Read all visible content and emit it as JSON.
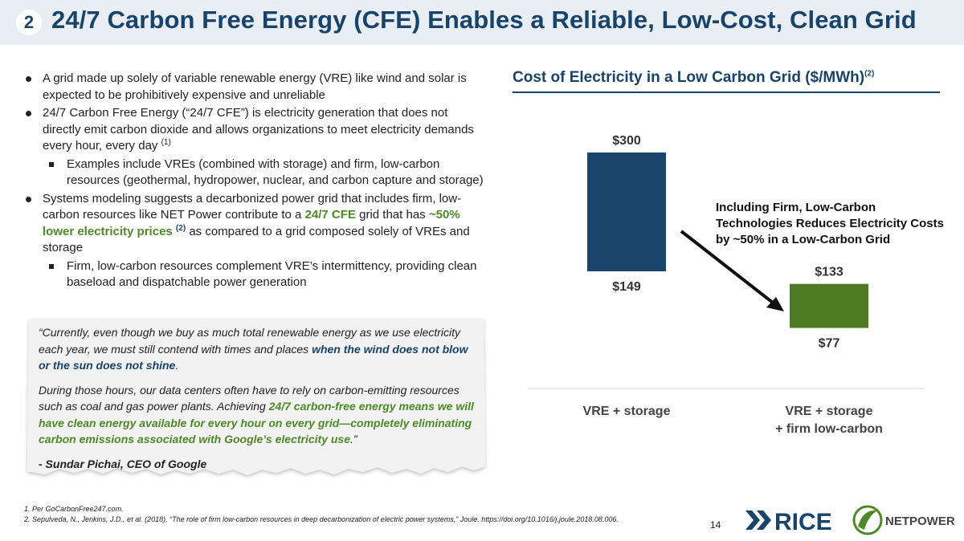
{
  "header": {
    "section_number": "2",
    "title": "24/7 Carbon Free Energy (CFE) Enables a Reliable, Low-Cost, Clean Grid"
  },
  "bullets": {
    "b1": "A grid made up solely of variable renewable energy (VRE) like wind and solar is expected to be prohibitively expensive and unreliable",
    "b2_text": "24/7 Carbon Free Energy (“24/7 CFE”) is electricity generation that does not directly emit carbon dioxide and allows organizations to meet electricity demands every hour, every day",
    "b2_ref": "(1)",
    "b2_sub": "Examples include VREs (combined with storage) and firm, low-carbon resources (geothermal, hydropower, nuclear, and carbon capture and storage)",
    "b3_pre": "Systems modeling suggests a decarbonized power grid that includes firm, low-carbon resources like NET Power contribute to a",
    "b3_cfe": "24/7 CFE",
    "b3_mid": "grid that has",
    "b3_lower": "~50% lower electricity prices",
    "b3_ref": "(2)",
    "b3_post": "as compared to a grid composed solely of VREs and storage",
    "b3_sub": "Firm, low-carbon resources complement VRE’s intermittency, providing clean baseload and dispatchable power generation"
  },
  "quote": {
    "p1_pre": "“Currently, even though we buy as much total renewable energy as we use electricity each year, we must still contend with times and places",
    "p1_bold": "when the wind does not blow or the sun does not shine",
    "p1_end": ".",
    "p2_pre": "During those hours, our data centers often have to rely on carbon-emitting resources such as coal and gas power plants. Achieving",
    "p2_bold": "24/7 carbon-free energy means we will have clean energy available for every hour on every grid—completely eliminating carbon emissions associated with Google’s electricity use",
    "p2_end": ".”",
    "attribution": "- Sundar Pichai, CEO of Google"
  },
  "footnotes": [
    "1.  Per GoCarbonFree247.com.",
    "2.  Sepulveda, N., Jenkins, J.D., et al. (2018), “The role of firm low-carbon resources in deep decarbonization of electric power systems,” Joule. https://doi.org/10.1016/j.joule.2018.08.006."
  ],
  "page_number": "14",
  "annotation": "Including Firm, Low-Carbon Technologies Reduces Electricity Costs by ~50% in a Low-Carbon Grid",
  "logos": {
    "rice": "RICE",
    "netpower": "NETPOWER"
  },
  "colors": {
    "navy": "#18436b",
    "green": "#4d8a26",
    "header_bg": "#e8eef4"
  },
  "chart_data": {
    "type": "bar",
    "title": "Cost of Electricity in a Low Carbon Grid ($/MWh)",
    "title_ref": "(2)",
    "categories": [
      {
        "line1": "VRE + storage",
        "line2": ""
      },
      {
        "line1": "VRE + storage",
        "line2": "+ firm low-carbon"
      }
    ],
    "bars": [
      {
        "low": 149,
        "high": 300,
        "low_label": "$149",
        "high_label": "$300",
        "color": "#18436b"
      },
      {
        "low": 77,
        "high": 133,
        "low_label": "$77",
        "high_label": "$133",
        "color": "#4d7a22"
      }
    ],
    "ylim": [
      0,
      330
    ],
    "grid": false,
    "legend": "none"
  }
}
